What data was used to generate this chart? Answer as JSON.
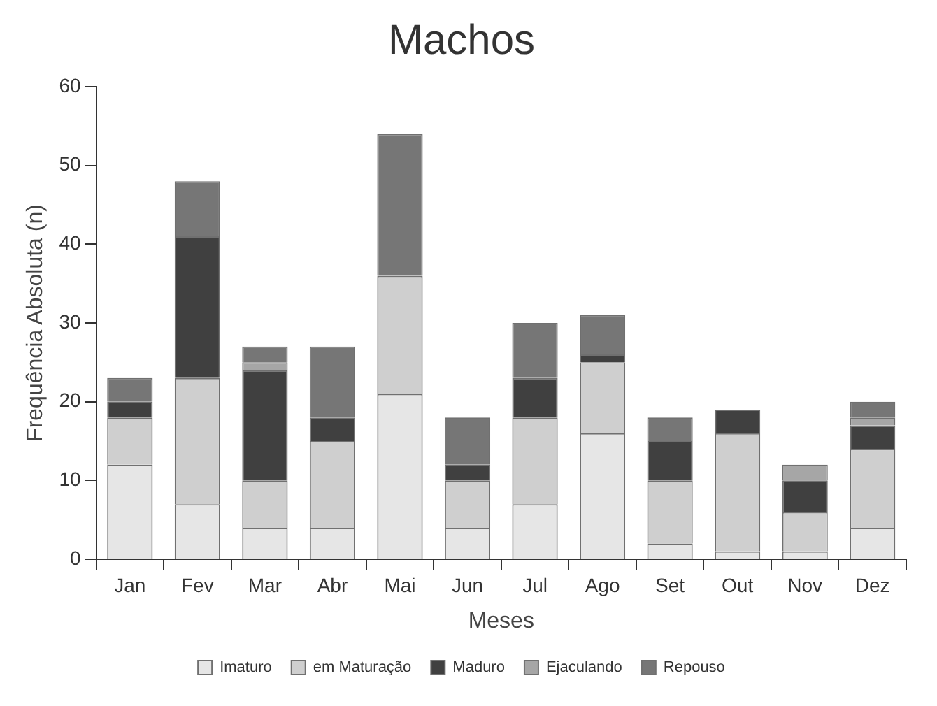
{
  "chart_data": {
    "type": "bar",
    "stacked": true,
    "title": "Machos",
    "xlabel": "Meses",
    "ylabel": "Frequência Absoluta (n)",
    "categories": [
      "Jan",
      "Fev",
      "Mar",
      "Abr",
      "Mai",
      "Jun",
      "Jul",
      "Ago",
      "Set",
      "Out",
      "Nov",
      "Dez"
    ],
    "ylim": [
      0,
      60
    ],
    "yticks": [
      0,
      10,
      20,
      30,
      40,
      50,
      60
    ],
    "grid": false,
    "legend": "bottom",
    "series": [
      {
        "name": "Imaturo",
        "color": "#e6e6e6",
        "values": [
          12,
          7,
          4,
          4,
          21,
          4,
          7,
          16,
          2,
          1,
          1,
          4
        ]
      },
      {
        "name": "em Maturação",
        "color": "#cfcfcf",
        "values": [
          6,
          16,
          6,
          11,
          15,
          6,
          11,
          9,
          8,
          15,
          5,
          10
        ]
      },
      {
        "name": "Maduro",
        "color": "#404040",
        "values": [
          2,
          18,
          14,
          3,
          0,
          2,
          5,
          1,
          5,
          3,
          4,
          3
        ]
      },
      {
        "name": "Ejaculando",
        "color": "#a6a6a6",
        "values": [
          0,
          0,
          1,
          0,
          0,
          0,
          0,
          0,
          0,
          0,
          2,
          1
        ]
      },
      {
        "name": "Repouso",
        "color": "#767676",
        "values": [
          3,
          7,
          2,
          9,
          18,
          6,
          7,
          5,
          3,
          0,
          0,
          2
        ]
      }
    ]
  }
}
